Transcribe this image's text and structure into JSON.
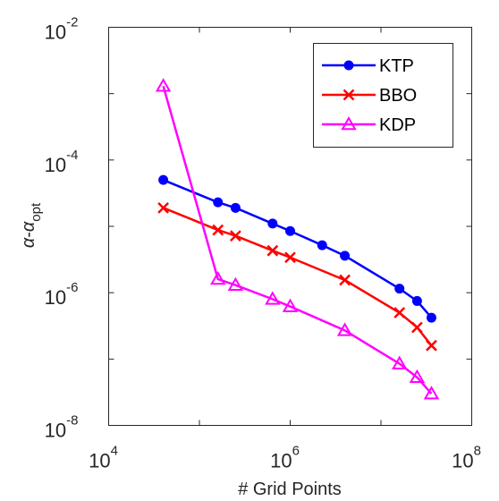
{
  "chart_data": {
    "type": "line",
    "x_scale": "log",
    "y_scale": "log",
    "xlim": [
      10000,
      100000000
    ],
    "ylim": [
      1e-08,
      0.01
    ],
    "x_ticks": [
      {
        "base": "10",
        "exp": "4"
      },
      {
        "base": "10",
        "exp": "6"
      },
      {
        "base": "10",
        "exp": "8"
      }
    ],
    "y_ticks": [
      {
        "base": "10",
        "exp": "-8"
      },
      {
        "base": "10",
        "exp": "-6"
      },
      {
        "base": "10",
        "exp": "-4"
      },
      {
        "base": "10",
        "exp": "-2"
      }
    ],
    "xlabel": "# Grid Points",
    "ylabel": {
      "alpha": "α",
      "dash": "-",
      "sub": "opt"
    },
    "grid": false,
    "legend_position": "top-right",
    "series": [
      {
        "name": "KTP",
        "color": "#0000ff",
        "marker": "circle",
        "points": [
          [
            40000,
            5e-05
          ],
          [
            160000,
            2.3e-05
          ],
          [
            250000,
            1.9e-05
          ],
          [
            640000,
            1.1e-05
          ],
          [
            1000000,
            8.5e-06
          ],
          [
            2250000,
            5.2e-06
          ],
          [
            4000000,
            3.6e-06
          ],
          [
            16000000,
            1.15e-06
          ],
          [
            25000000,
            7.5e-07
          ],
          [
            36000000,
            4.2e-07
          ]
        ]
      },
      {
        "name": "BBO",
        "color": "#ff0000",
        "marker": "x",
        "points": [
          [
            40000,
            1.9e-05
          ],
          [
            160000,
            8.8e-06
          ],
          [
            250000,
            7.2e-06
          ],
          [
            640000,
            4.3e-06
          ],
          [
            1000000,
            3.4e-06
          ],
          [
            4000000,
            1.55e-06
          ],
          [
            16000000,
            5e-07
          ],
          [
            25000000,
            3e-07
          ],
          [
            36000000,
            1.6e-07
          ]
        ]
      },
      {
        "name": "KDP",
        "color": "#ff00ff",
        "marker": "triangle",
        "points": [
          [
            40000,
            0.0013
          ],
          [
            160000,
            1.6e-06
          ],
          [
            250000,
            1.3e-06
          ],
          [
            640000,
            8e-07
          ],
          [
            1000000,
            6.2e-07
          ],
          [
            4000000,
            2.7e-07
          ],
          [
            16000000,
            8.5e-08
          ],
          [
            25000000,
            5.3e-08
          ],
          [
            36000000,
            3e-08
          ]
        ]
      }
    ]
  }
}
